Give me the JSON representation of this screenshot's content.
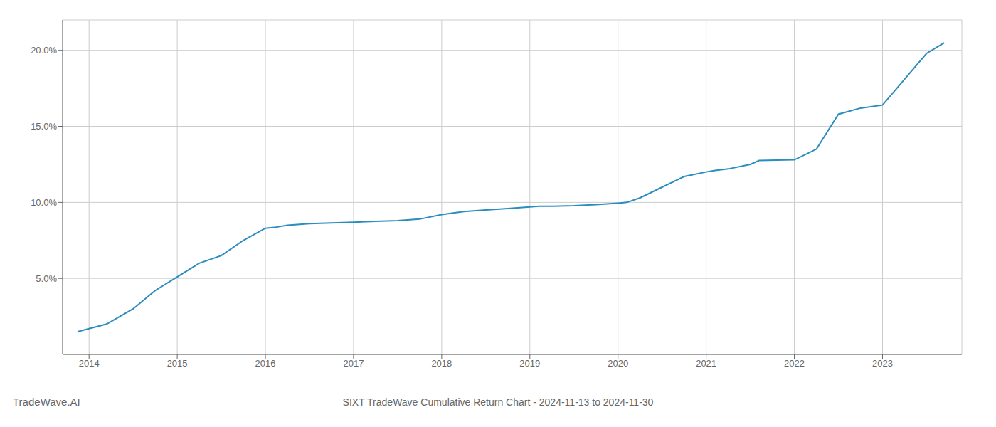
{
  "chart_data": {
    "type": "line",
    "title": "SIXT TradeWave Cumulative Return Chart - 2024-11-13 to 2024-11-30",
    "annotations": [
      "TradeWave.AI"
    ],
    "x": [
      2013.87,
      2014.0,
      2014.2,
      2014.5,
      2014.75,
      2015.0,
      2015.25,
      2015.5,
      2015.75,
      2016.0,
      2016.1,
      2016.25,
      2016.5,
      2016.75,
      2017.0,
      2017.25,
      2017.5,
      2017.75,
      2018.0,
      2018.25,
      2018.5,
      2018.75,
      2019.0,
      2019.1,
      2019.25,
      2019.5,
      2019.75,
      2020.0,
      2020.1,
      2020.25,
      2020.5,
      2020.75,
      2021.0,
      2021.1,
      2021.25,
      2021.5,
      2021.6,
      2022.0,
      2022.25,
      2022.5,
      2022.75,
      2023.0,
      2023.5,
      2023.7
    ],
    "values": [
      1.5,
      1.7,
      2.0,
      3.0,
      4.2,
      5.1,
      6.0,
      6.5,
      7.5,
      8.3,
      8.35,
      8.5,
      8.6,
      8.65,
      8.7,
      8.75,
      8.8,
      8.9,
      9.2,
      9.4,
      9.5,
      9.6,
      9.7,
      9.75,
      9.75,
      9.78,
      9.85,
      9.95,
      10.0,
      10.3,
      11.0,
      11.7,
      12.0,
      12.1,
      12.2,
      12.5,
      12.75,
      12.8,
      13.5,
      15.8,
      16.2,
      16.4,
      19.8,
      20.5
    ],
    "color": "#2b8cbf",
    "xlim": [
      2013.7,
      2023.9
    ],
    "ylim": [
      0,
      22
    ],
    "xticks": [
      2014,
      2015,
      2016,
      2017,
      2018,
      2019,
      2020,
      2021,
      2022,
      2023
    ],
    "yticks": [
      {
        "value": 5.0,
        "label": "5.0%"
      },
      {
        "value": 10.0,
        "label": "10.0%"
      },
      {
        "value": 15.0,
        "label": "15.0%"
      },
      {
        "value": 20.0,
        "label": "20.0%"
      }
    ],
    "grid": true
  }
}
